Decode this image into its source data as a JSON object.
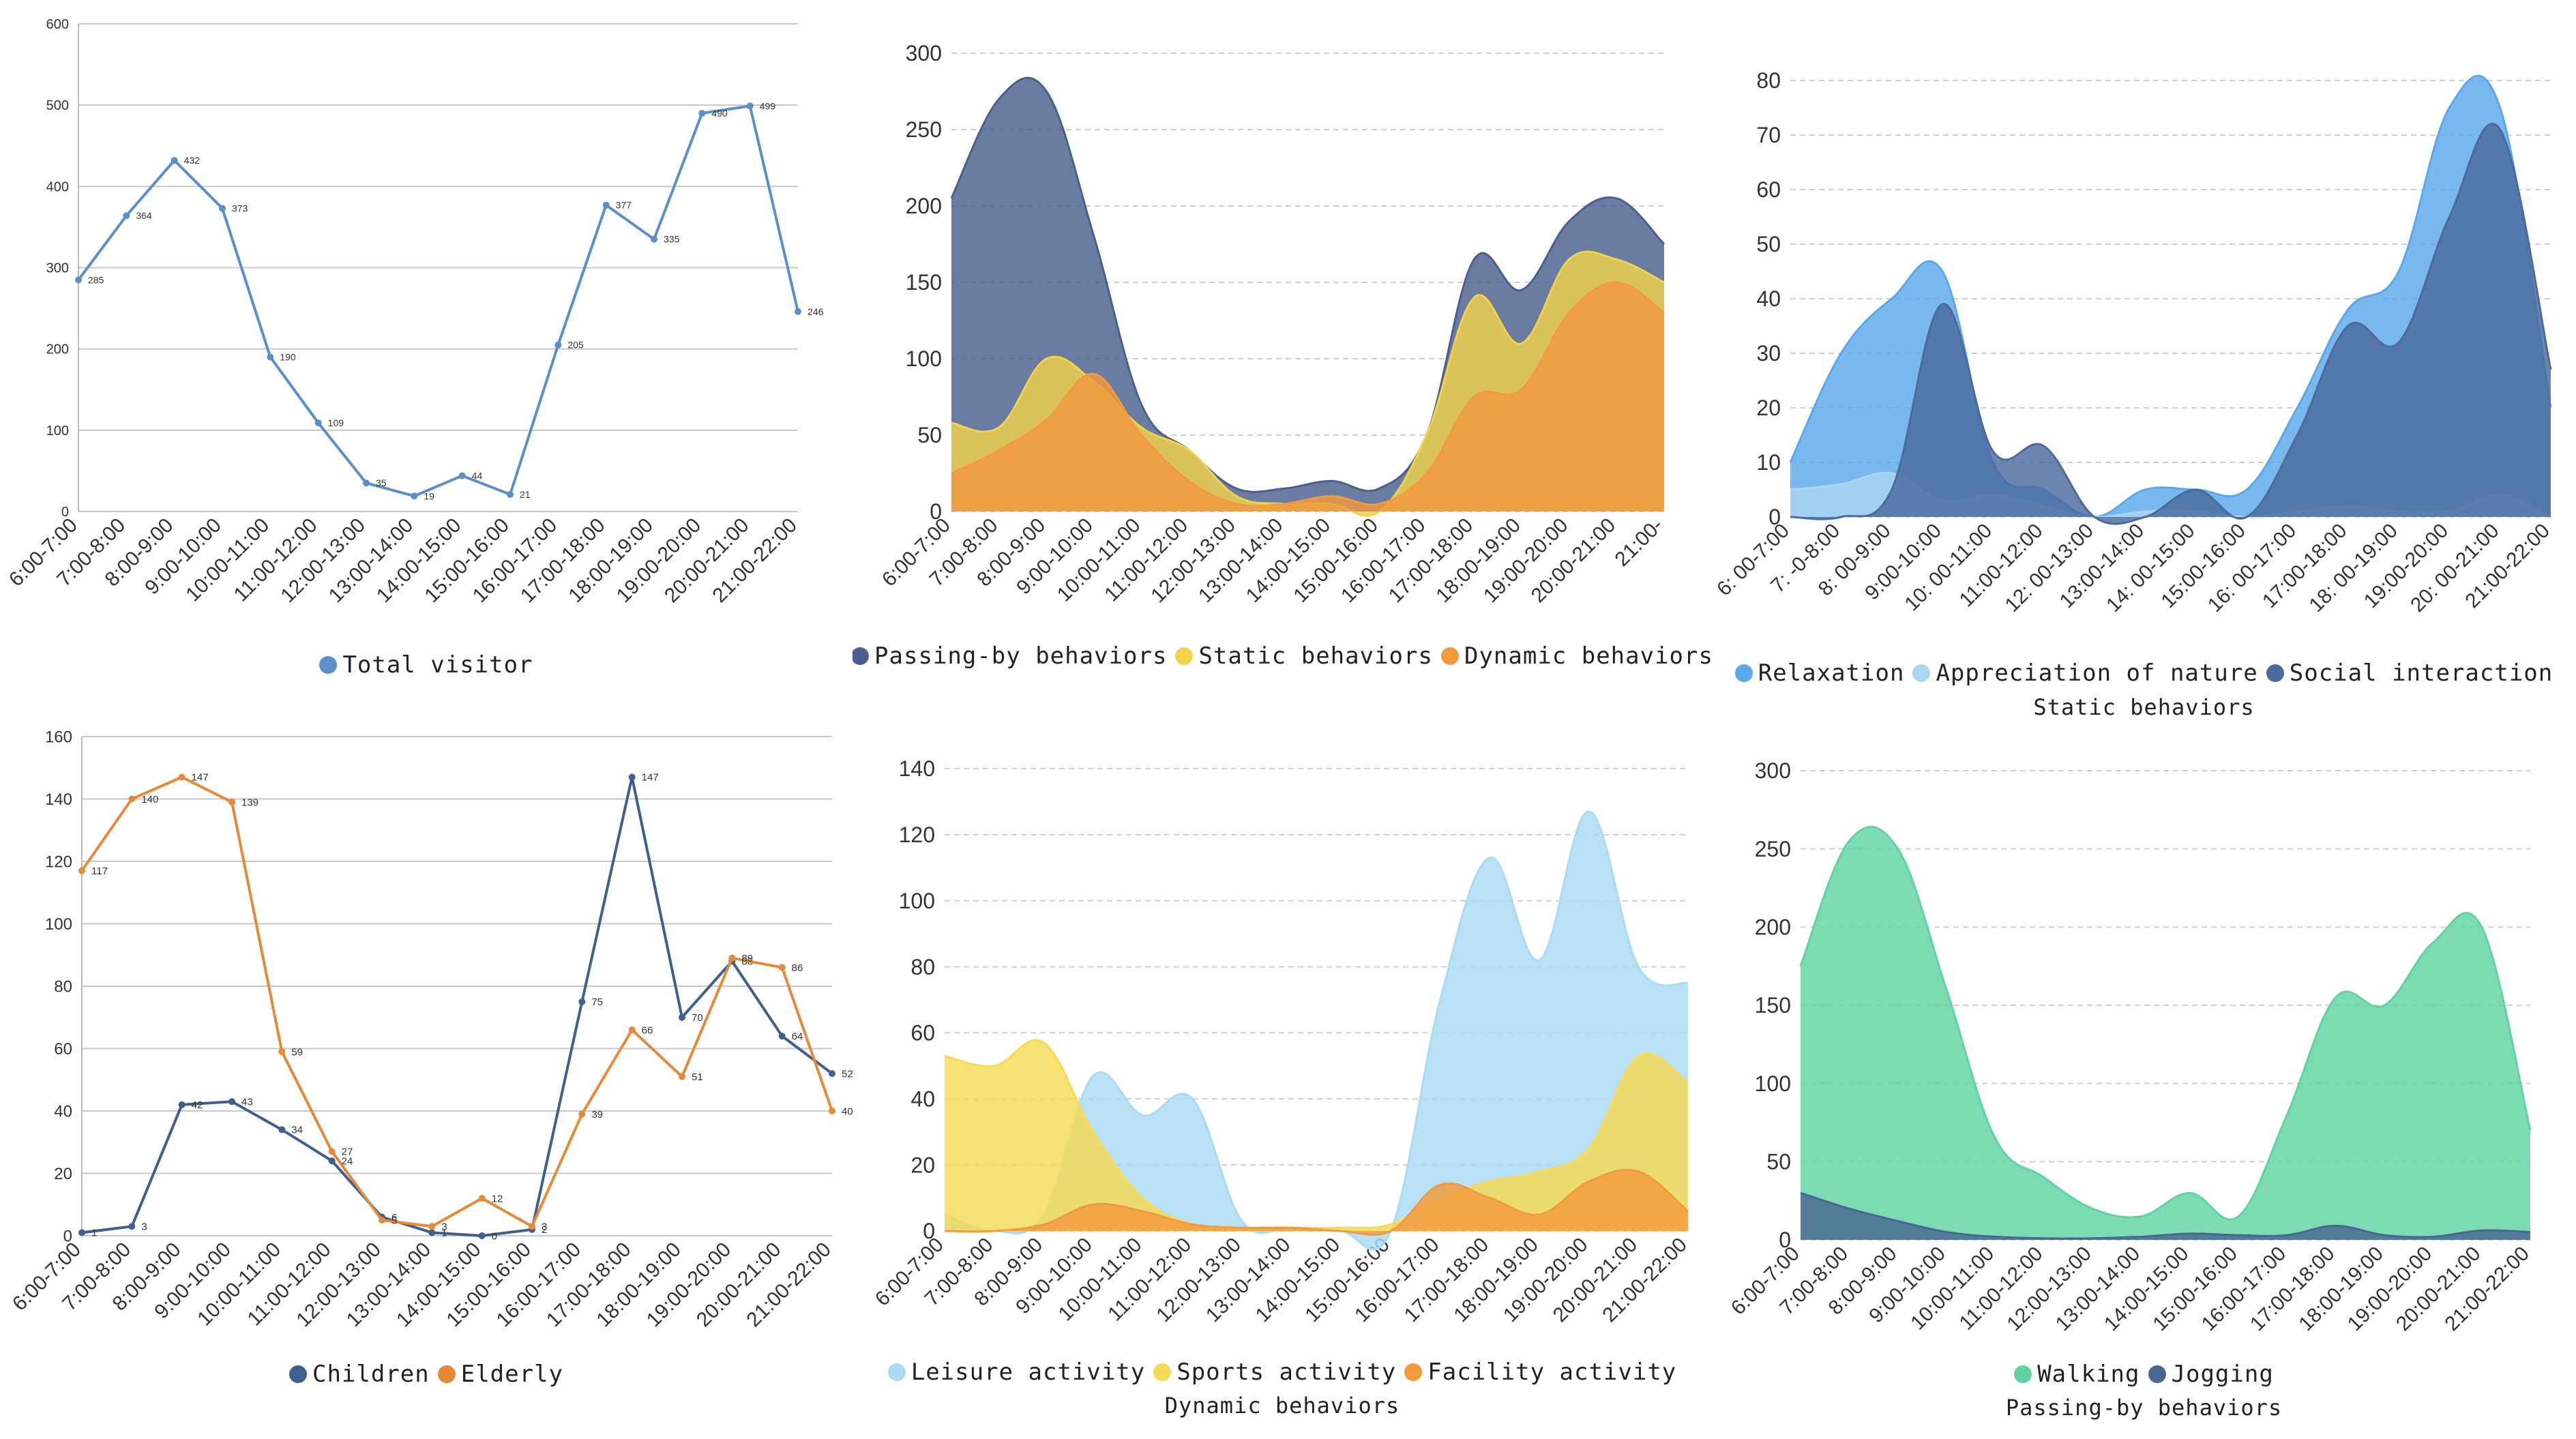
{
  "chart_data": [
    {
      "id": "p1",
      "type": "line",
      "categories": [
        "6:00-7:00",
        "7:00-8:00",
        "8:00-9:00",
        "9:00-10:00",
        "10:00-11:00",
        "11:00-12:00",
        "12:00-13:00",
        "13:00-14:00",
        "14:00-15:00",
        "15:00-16:00",
        "16:00-17:00",
        "17:00-18:00",
        "18:00-19:00",
        "19:00-20:00",
        "20:00-21:00",
        "21:00-22:00"
      ],
      "ylim": [
        0,
        600
      ],
      "yticks": [
        0,
        100,
        200,
        300,
        400,
        500,
        600
      ],
      "series": [
        {
          "name": "Total visitor",
          "color": "#5b8fc9",
          "values": [
            285,
            364,
            432,
            373,
            190,
            109,
            35,
            19,
            44,
            21,
            205,
            377,
            335,
            490,
            499,
            246
          ],
          "labels": [
            "285",
            "364",
            "432",
            "373",
            "190",
            "109",
            "35",
            "19",
            "44",
            "21",
            "205",
            "377",
            "335",
            "490",
            "499",
            "246"
          ]
        }
      ],
      "legend": [
        "Total visitor"
      ],
      "subtitle": ""
    },
    {
      "id": "p2",
      "type": "area",
      "categories": [
        "6:00-7:00",
        "7:00-8:00",
        "8:00-9:00",
        "9:00-10:00",
        "10:00-11:00",
        "11:00-12:00",
        "12:00-13:00",
        "13:00-14:00",
        "14:00-15:00",
        "15:00-16:00",
        "16:00-17:00",
        "17:00-18:00",
        "18:00-19:00",
        "19:00-20:00",
        "20:00-21:00",
        "21:00-"
      ],
      "ylim": [
        0,
        300
      ],
      "yticks": [
        0,
        50,
        100,
        150,
        200,
        250,
        300
      ],
      "series": [
        {
          "name": "Passing-by behaviors",
          "color": "#4a5f8f",
          "values": [
            205,
            270,
            275,
            180,
            70,
            40,
            15,
            15,
            20,
            15,
            50,
            165,
            145,
            190,
            205,
            175
          ]
        },
        {
          "name": "Static behaviors",
          "color": "#f2d24a",
          "values": [
            58,
            55,
            100,
            85,
            55,
            40,
            10,
            5,
            5,
            0,
            50,
            140,
            110,
            165,
            165,
            150
          ]
        },
        {
          "name": "Dynamic behaviors",
          "color": "#f39a3d",
          "values": [
            25,
            40,
            60,
            90,
            50,
            20,
            5,
            5,
            10,
            5,
            25,
            75,
            80,
            130,
            150,
            130
          ]
        }
      ],
      "legend": [
        "Passing-by behaviors",
        "Static behaviors",
        "Dynamic behaviors"
      ],
      "subtitle": ""
    },
    {
      "id": "p3",
      "type": "area",
      "categories": [
        "6: 00-7:00",
        "7: -0-8:00",
        "8: 00-9:00",
        "9:00-10:00",
        "10: 00-11:00",
        "11:00-12:00",
        "12: 00-13:00",
        "13:00-14:00",
        "14: 00-15:00",
        "15:00-16:00",
        "16: 00-17:00",
        "17:00-18:00",
        "18: 00-19:00",
        "19:00-20:00",
        "20: 00-21:00",
        "21:00-22:00"
      ],
      "ylim": [
        0,
        80
      ],
      "yticks": [
        0,
        10,
        20,
        30,
        40,
        50,
        60,
        70,
        80
      ],
      "series": [
        {
          "name": "Relaxation",
          "color": "#5aa8ea",
          "values": [
            10,
            30,
            40,
            45,
            10,
            5,
            0,
            5,
            5,
            5,
            20,
            38,
            45,
            75,
            75,
            20
          ]
        },
        {
          "name": "Appreciation of nature",
          "color": "#a9d6f2",
          "values": [
            5,
            6,
            8,
            3,
            4,
            2,
            0,
            1,
            1,
            0,
            1,
            2,
            1,
            1,
            4,
            0
          ]
        },
        {
          "name": "Social interaction",
          "color": "#4b6a9e",
          "values": [
            0,
            0,
            5,
            39,
            12,
            13,
            0,
            0,
            5,
            0,
            15,
            35,
            32,
            55,
            71,
            27
          ]
        }
      ],
      "legend": [
        "Relaxation",
        "Appreciation of nature",
        "Social interaction"
      ],
      "subtitle": "Static behaviors"
    },
    {
      "id": "p4",
      "type": "line",
      "categories": [
        "6:00-7:00",
        "7:00-8:00",
        "8:00-9:00",
        "9:00-10:00",
        "10:00-11:00",
        "11:00-12:00",
        "12:00-13:00",
        "13:00-14:00",
        "14:00-15:00",
        "15:00-16:00",
        "16:00-17:00",
        "17:00-18:00",
        "18:00-19:00",
        "19:00-20:00",
        "20:00-21:00",
        "21:00-22:00"
      ],
      "ylim": [
        0,
        160
      ],
      "yticks": [
        0,
        20,
        40,
        60,
        80,
        100,
        120,
        140,
        160
      ],
      "series": [
        {
          "name": "Children",
          "color": "#3f5f8f",
          "values": [
            1,
            3,
            42,
            43,
            34,
            24,
            6,
            1,
            0,
            2,
            75,
            147,
            70,
            88,
            64,
            52
          ],
          "labels": [
            "1",
            "3",
            "42",
            "43",
            "34",
            "24",
            "6",
            "1",
            "0",
            "2",
            "75",
            "147",
            "70",
            "88",
            "64",
            "52"
          ]
        },
        {
          "name": "Elderly",
          "color": "#e68a3a",
          "values": [
            117,
            140,
            147,
            139,
            59,
            27,
            5,
            3,
            12,
            3,
            39,
            66,
            51,
            89,
            86,
            40
          ],
          "labels": [
            "117",
            "140",
            "147",
            "139",
            "59",
            "27",
            "5",
            "3",
            "12",
            "3",
            "39",
            "66",
            "51",
            "89",
            "86",
            "40"
          ]
        }
      ],
      "legend": [
        "Children",
        "Elderly"
      ],
      "subtitle": ""
    },
    {
      "id": "p5",
      "type": "area",
      "categories": [
        "6:00-7:00",
        "7:00-8:00",
        "8:00-9:00",
        "9:00-10:00",
        "10:00-11:00",
        "11:00-12:00",
        "12:00-13:00",
        "13:00-14:00",
        "14:00-15:00",
        "15:00-16:00",
        "16:00-17:00",
        "17:00-18:00",
        "18:00-19:00",
        "19:00-20:00",
        "20:00-21:00",
        "21:00-22:00"
      ],
      "ylim": [
        0,
        140
      ],
      "yticks": [
        0,
        20,
        40,
        60,
        80,
        100,
        120,
        140
      ],
      "series": [
        {
          "name": "Leisure activity",
          "color": "#a9dbf3",
          "values": [
            5,
            0,
            5,
            47,
            35,
            40,
            3,
            1,
            0,
            0,
            70,
            113,
            82,
            127,
            80,
            75
          ]
        },
        {
          "name": "Sports activity",
          "color": "#f7da55",
          "values": [
            53,
            50,
            57,
            30,
            10,
            2,
            1,
            1,
            1,
            2,
            10,
            15,
            18,
            25,
            53,
            45
          ]
        },
        {
          "name": "Facility activity",
          "color": "#f39a3d",
          "values": [
            0,
            0,
            2,
            8,
            6,
            2,
            1,
            1,
            0,
            0,
            14,
            10,
            5,
            15,
            18,
            6
          ]
        }
      ],
      "legend": [
        "Leisure activity",
        "Sports activity",
        "Facility activity"
      ],
      "subtitle": "Dynamic behaviors"
    },
    {
      "id": "p6",
      "type": "area",
      "categories": [
        "6:00-7:00",
        "7:00-8:00",
        "8:00-9:00",
        "9:00-10:00",
        "10:00-11:00",
        "11:00-12:00",
        "12:00-13:00",
        "13:00-14:00",
        "14:00-15:00",
        "15:00-16:00",
        "16:00-17:00",
        "17:00-18:00",
        "18:00-19:00",
        "19:00-20:00",
        "20:00-21:00",
        "21:00-22:00"
      ],
      "ylim": [
        0,
        300
      ],
      "yticks": [
        0,
        50,
        100,
        150,
        200,
        250,
        300
      ],
      "series": [
        {
          "name": "Walking",
          "color": "#5fd3a2",
          "values": [
            175,
            255,
            250,
            160,
            65,
            40,
            20,
            15,
            30,
            15,
            80,
            155,
            150,
            190,
            200,
            70
          ]
        },
        {
          "name": "Jogging",
          "color": "#4a6793",
          "values": [
            30,
            20,
            12,
            5,
            2,
            1,
            1,
            2,
            4,
            3,
            3,
            9,
            3,
            2,
            6,
            5
          ]
        }
      ],
      "legend": [
        "Walking",
        "Jogging"
      ],
      "subtitle": "Passing-by behaviors"
    }
  ]
}
